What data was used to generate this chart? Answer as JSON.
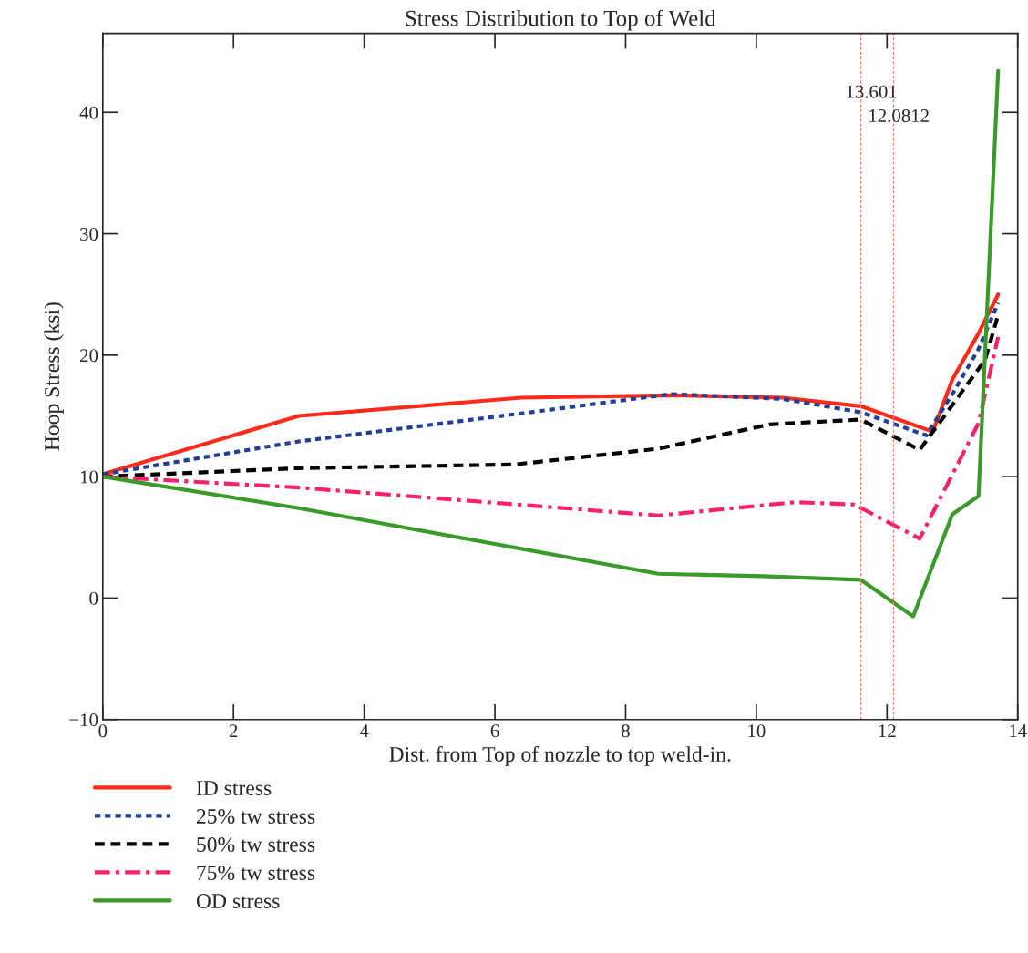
{
  "chart_data": {
    "type": "line",
    "title": "Stress Distribution to Top of Weld",
    "xlabel": "Dist. from Top of nozzle to top weld-in.",
    "ylabel": "Hoop Stress (ksi)",
    "xlim": [
      0,
      14
    ],
    "xticks": [
      0,
      2,
      4,
      6,
      8,
      10,
      12,
      14
    ],
    "ylim": [
      -10,
      46.5
    ],
    "yticks": [
      {
        "value": -10,
        "label": "−10"
      },
      0,
      10,
      20,
      30,
      40
    ],
    "grid": false,
    "legend": "bottom left",
    "ref_lines": [
      {
        "axis": "x",
        "value": 11.6,
        "color": "#f08070",
        "line_style": "dashed"
      },
      {
        "axis": "x",
        "value": 12.1,
        "color": "#f08070",
        "line_style": "dashed"
      }
    ],
    "annotations": [
      "13.601",
      "12.0812"
    ],
    "series": [
      {
        "name": "ID stress",
        "color": "#ff2a1a",
        "line_style": "solid",
        "x": [
          0,
          3.0,
          6.4,
          8.7,
          10.4,
          11.6,
          12.7,
          13.0,
          13.4,
          13.7
        ],
        "values": [
          10.2,
          15.0,
          16.5,
          16.7,
          16.5,
          15.8,
          13.7,
          18.0,
          21.8,
          25.0
        ]
      },
      {
        "name": "25% tw stress",
        "color": "#1f3f99",
        "line_style": "dotted",
        "x": [
          0,
          3.0,
          6.4,
          8.7,
          10.4,
          11.6,
          12.6,
          13.0,
          13.4,
          13.7
        ],
        "values": [
          10.2,
          12.9,
          15.2,
          16.8,
          16.4,
          15.3,
          13.4,
          16.8,
          20.5,
          24.3
        ]
      },
      {
        "name": "50% tw stress",
        "color": "#000000",
        "line_style": "dashed",
        "x": [
          0,
          3.0,
          6.3,
          8.5,
          10.2,
          11.6,
          12.5,
          13.5,
          13.7
        ],
        "values": [
          10.0,
          10.7,
          11.0,
          12.3,
          14.3,
          14.7,
          12.2,
          19.6,
          23.3
        ]
      },
      {
        "name": "75% tw stress",
        "color": "#ff1f6a",
        "line_style": "dashdot",
        "x": [
          0,
          3.0,
          8.5,
          10.6,
          11.5,
          12.5,
          13.4,
          13.7
        ],
        "values": [
          10.0,
          9.1,
          6.8,
          7.9,
          7.7,
          4.9,
          14.4,
          21.5
        ]
      },
      {
        "name": "OD stress",
        "color": "#3a9a2a",
        "line_style": "solid",
        "x": [
          0,
          3.0,
          8.5,
          10.1,
          11.6,
          12.4,
          13.0,
          13.4,
          13.7
        ],
        "values": [
          10.0,
          7.4,
          2.0,
          1.8,
          1.5,
          -1.5,
          6.9,
          8.4,
          43.4
        ]
      }
    ]
  }
}
